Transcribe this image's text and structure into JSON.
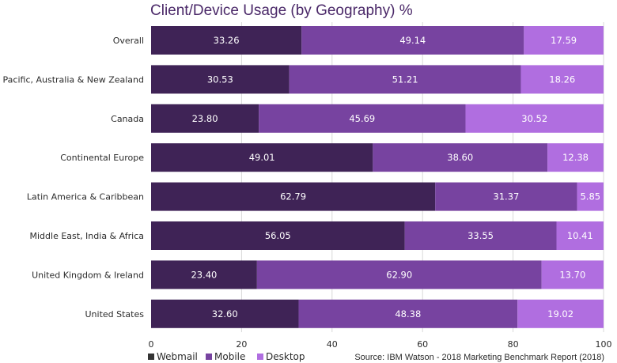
{
  "chart_data": {
    "type": "bar",
    "orientation": "horizontal",
    "stacked": true,
    "title": "Client/Device Usage (by Geography) %",
    "xlabel": "",
    "ylabel": "",
    "xlim": [
      0,
      100
    ],
    "x_ticks": [
      0,
      20,
      40,
      60,
      80,
      100
    ],
    "grid": true,
    "legend_position": "bottom-left",
    "categories": [
      "Overall",
      "Asia Pacific, Australia & New Zealand",
      "Canada",
      "Continental Europe",
      "Latin America & Caribbean",
      "Middle East, India & Africa",
      "United Kingdom & Ireland",
      "United States"
    ],
    "series": [
      {
        "name": "Webmail",
        "color": "#3f2356",
        "values": [
          33.26,
          30.53,
          23.8,
          49.01,
          62.79,
          56.05,
          23.4,
          32.6
        ],
        "labels": [
          "33.26",
          "30.53",
          "23.80",
          "49.01",
          "62.79",
          "56.05",
          "23.40",
          "32.60"
        ]
      },
      {
        "name": "Mobile",
        "color": "#7743a0",
        "values": [
          49.14,
          51.21,
          45.69,
          38.6,
          31.37,
          33.55,
          62.9,
          48.38
        ],
        "labels": [
          "49.14",
          "51.21",
          "45.69",
          "38.60",
          "31.37",
          "33.55",
          "62.90",
          "48.38"
        ]
      },
      {
        "name": "Desktop",
        "color": "#b06ee0",
        "values": [
          17.59,
          18.26,
          30.52,
          12.38,
          5.85,
          10.41,
          13.7,
          19.02
        ],
        "labels": [
          "17.59",
          "18.26",
          "30.52",
          "12.38",
          "5.85",
          "10.41",
          "13.70",
          "19.02"
        ]
      }
    ],
    "source": "Source: IBM Watson - 2018 Marketing Benchmark Report (2018)"
  }
}
